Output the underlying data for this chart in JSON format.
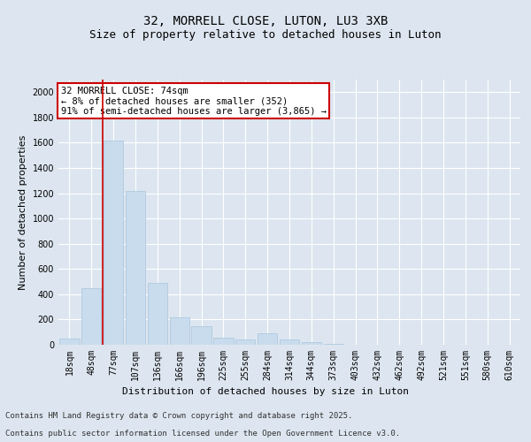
{
  "title": "32, MORRELL CLOSE, LUTON, LU3 3XB",
  "subtitle": "Size of property relative to detached houses in Luton",
  "xlabel": "Distribution of detached houses by size in Luton",
  "ylabel": "Number of detached properties",
  "categories": [
    "18sqm",
    "48sqm",
    "77sqm",
    "107sqm",
    "136sqm",
    "166sqm",
    "196sqm",
    "225sqm",
    "255sqm",
    "284sqm",
    "314sqm",
    "344sqm",
    "373sqm",
    "403sqm",
    "432sqm",
    "462sqm",
    "492sqm",
    "521sqm",
    "551sqm",
    "580sqm",
    "610sqm"
  ],
  "values": [
    50,
    450,
    1620,
    1220,
    490,
    220,
    145,
    55,
    45,
    90,
    40,
    20,
    8,
    3,
    2,
    1,
    1,
    0,
    0,
    0,
    0
  ],
  "bar_color": "#c9dced",
  "bar_edge_color": "#a8c4dc",
  "marker_line_index": 2,
  "marker_line_color": "#cc0000",
  "ylim": [
    0,
    2100
  ],
  "yticks": [
    0,
    200,
    400,
    600,
    800,
    1000,
    1200,
    1400,
    1600,
    1800,
    2000
  ],
  "annotation_box_text": "32 MORRELL CLOSE: 74sqm\n← 8% of detached houses are smaller (352)\n91% of semi-detached houses are larger (3,865) →",
  "annotation_box_color": "#cc0000",
  "annotation_box_fill": "#ffffff",
  "background_color": "#dde6f0",
  "plot_background_color": "#dde6f0",
  "footer_line1": "Contains HM Land Registry data © Crown copyright and database right 2025.",
  "footer_line2": "Contains public sector information licensed under the Open Government Licence v3.0.",
  "title_fontsize": 10,
  "subtitle_fontsize": 9,
  "axis_label_fontsize": 8,
  "tick_fontsize": 7,
  "annotation_fontsize": 7.5,
  "footer_fontsize": 6.5
}
